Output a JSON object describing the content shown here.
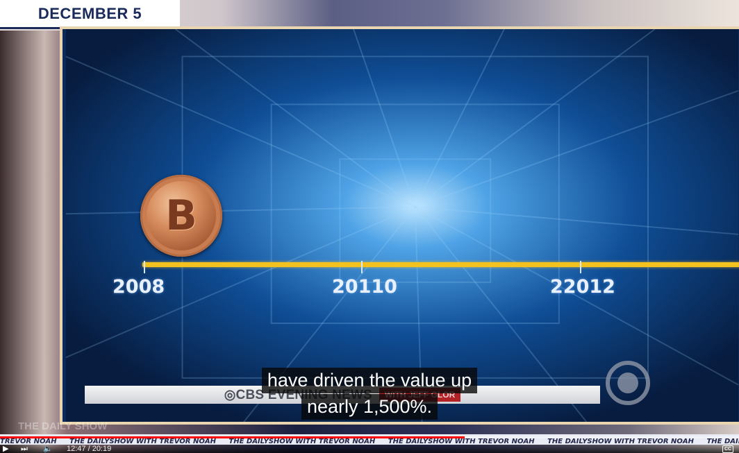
{
  "banner": {
    "date": "DECEMBER 5"
  },
  "screen": {
    "coin_symbol": "B",
    "years": [
      "2008",
      "20110",
      "22012"
    ],
    "news_network": "◎CBS EVENING NEWS",
    "news_anchor": "WITH JEFF GLOR"
  },
  "caption": {
    "line1": "have driven the value up",
    "line2": "nearly 1,500%."
  },
  "ticker": {
    "items": [
      "TREVOR NOAH",
      "THE DAILYSHOW WITH TREVOR NOAH",
      "THE DAILYSHOW WITH TREVOR NOAH",
      "THE DAILYSHOW WITH TREVOR NOAH",
      "THE DAILYSHOW WITH TREVOR NOAH",
      "THE DAILYSHOW WITH TREVOR NOAH"
    ]
  },
  "show_logo": "THE DAILY SHOW",
  "player": {
    "current_time": "12:47",
    "duration": "20:19",
    "time_display": "12:47 / 20:19",
    "progress_fraction": 0.629,
    "cc_label": "CC",
    "accent_color": "#ff0000"
  }
}
